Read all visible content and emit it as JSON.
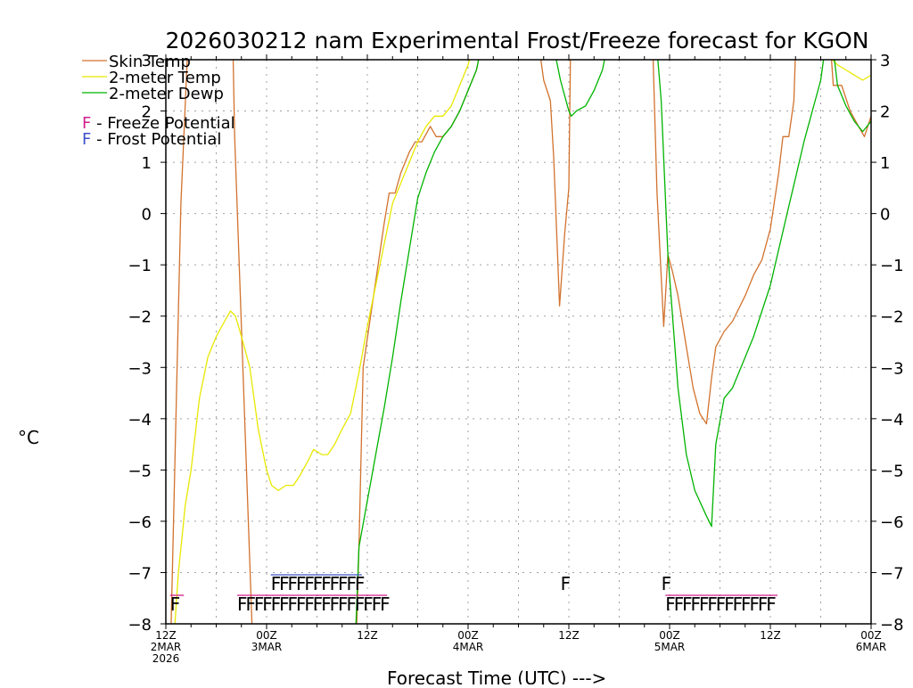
{
  "chart_data": {
    "type": "line",
    "title": "2026030212 nam Experimental Frost/Freeze forecast for KGON",
    "ylabel": "°C",
    "xlabel": "Forecast Time (UTC) --->",
    "ylim": [
      -8,
      3
    ],
    "xlim": [
      0,
      84
    ],
    "yticks": [
      -8,
      -7,
      -6,
      -5,
      -4,
      -3,
      -2,
      -1,
      0,
      1,
      2,
      3
    ],
    "grid": true,
    "x_ticks": [
      {
        "x": 0,
        "hour": "12Z",
        "date": "2MAR",
        "year": "2026"
      },
      {
        "x": 12,
        "hour": "00Z",
        "date": "3MAR",
        "year": ""
      },
      {
        "x": 24,
        "hour": "12Z",
        "date": "",
        "year": ""
      },
      {
        "x": 36,
        "hour": "00Z",
        "date": "4MAR",
        "year": ""
      },
      {
        "x": 48,
        "hour": "12Z",
        "date": "",
        "year": ""
      },
      {
        "x": 60,
        "hour": "00Z",
        "date": "5MAR",
        "year": ""
      },
      {
        "x": 72,
        "hour": "12Z",
        "date": "",
        "year": ""
      },
      {
        "x": 84,
        "hour": "00Z",
        "date": "6MAR",
        "year": ""
      }
    ],
    "series": [
      {
        "name": "Skin Temp",
        "color": "#d2722d",
        "points": [
          [
            0.6,
            -8.2
          ],
          [
            1.8,
            0.2
          ],
          [
            2.6,
            3.2
          ],
          [
            8.0,
            3.2
          ],
          [
            8.2,
            1.5
          ],
          [
            10.3,
            -8.2
          ],
          [
            22.7,
            -8.2
          ],
          [
            23.0,
            -6.5
          ],
          [
            23.5,
            -3.0
          ],
          [
            24.3,
            -2.1
          ],
          [
            25.1,
            -1.2
          ],
          [
            26.0,
            -0.2
          ],
          [
            26.6,
            0.4
          ],
          [
            27.3,
            0.4
          ],
          [
            28.0,
            0.8
          ],
          [
            29.0,
            1.2
          ],
          [
            29.7,
            1.4
          ],
          [
            30.5,
            1.4
          ],
          [
            31.5,
            1.7
          ],
          [
            32.2,
            1.5
          ],
          [
            33.0,
            1.5
          ],
          [
            34.0,
            1.7
          ],
          [
            35.0,
            2.0
          ],
          [
            36.0,
            2.4
          ],
          [
            37.0,
            2.8
          ],
          [
            37.5,
            3.2
          ],
          [
            44.5,
            3.2
          ],
          [
            45.0,
            2.6
          ],
          [
            45.8,
            2.2
          ],
          [
            46.2,
            1.1
          ],
          [
            46.9,
            -1.8
          ],
          [
            47.5,
            -0.4
          ],
          [
            48.0,
            0.5
          ],
          [
            48.2,
            3.2
          ],
          [
            58.0,
            3.2
          ],
          [
            58.5,
            0.4
          ],
          [
            59.3,
            -2.2
          ],
          [
            59.8,
            -0.8
          ],
          [
            60.3,
            -1.1
          ],
          [
            61.0,
            -1.6
          ],
          [
            62.0,
            -2.6
          ],
          [
            62.8,
            -3.4
          ],
          [
            63.6,
            -3.9
          ],
          [
            64.4,
            -4.1
          ],
          [
            65.0,
            -3.2
          ],
          [
            65.5,
            -2.6
          ],
          [
            66.5,
            -2.3
          ],
          [
            67.5,
            -2.1
          ],
          [
            69.0,
            -1.6
          ],
          [
            70.0,
            -1.2
          ],
          [
            71.0,
            -0.9
          ],
          [
            72.0,
            -0.3
          ],
          [
            73.0,
            0.8
          ],
          [
            73.5,
            1.5
          ],
          [
            74.2,
            1.5
          ],
          [
            74.8,
            2.2
          ],
          [
            75.0,
            3.2
          ],
          [
            79.2,
            3.2
          ],
          [
            79.5,
            2.5
          ],
          [
            80.5,
            2.5
          ],
          [
            81.5,
            2.0
          ],
          [
            82.5,
            1.7
          ],
          [
            83.2,
            1.5
          ],
          [
            84.0,
            1.9
          ]
        ]
      },
      {
        "name": "2-meter Temp",
        "color": "#e8e800",
        "points": [
          [
            1.0,
            -8.2
          ],
          [
            1.5,
            -7.0
          ],
          [
            2.3,
            -5.7
          ],
          [
            3.0,
            -5.0
          ],
          [
            4.0,
            -3.6
          ],
          [
            5.0,
            -2.8
          ],
          [
            6.0,
            -2.4
          ],
          [
            7.0,
            -2.1
          ],
          [
            7.7,
            -1.9
          ],
          [
            8.3,
            -2.0
          ],
          [
            9.0,
            -2.4
          ],
          [
            10.0,
            -3.0
          ],
          [
            11.0,
            -4.2
          ],
          [
            12.0,
            -5.0
          ],
          [
            12.6,
            -5.3
          ],
          [
            13.4,
            -5.4
          ],
          [
            14.3,
            -5.3
          ],
          [
            15.2,
            -5.3
          ],
          [
            16.0,
            -5.1
          ],
          [
            17.0,
            -4.8
          ],
          [
            17.6,
            -4.6
          ],
          [
            18.6,
            -4.7
          ],
          [
            19.3,
            -4.7
          ],
          [
            20.1,
            -4.5
          ],
          [
            21.0,
            -4.2
          ],
          [
            22.0,
            -3.9
          ],
          [
            23.0,
            -3.1
          ],
          [
            24.0,
            -2.2
          ],
          [
            25.0,
            -1.4
          ],
          [
            26.0,
            -0.6
          ],
          [
            27.0,
            0.2
          ],
          [
            28.0,
            0.6
          ],
          [
            29.0,
            1.0
          ],
          [
            30.0,
            1.4
          ],
          [
            31.0,
            1.7
          ],
          [
            32.0,
            1.9
          ],
          [
            33.0,
            1.9
          ],
          [
            34.0,
            2.1
          ],
          [
            35.0,
            2.5
          ],
          [
            36.0,
            2.9
          ],
          [
            36.5,
            3.2
          ],
          [
            78.2,
            3.2
          ],
          [
            78.8,
            3.1
          ],
          [
            80.0,
            2.9
          ],
          [
            81.0,
            2.8
          ],
          [
            82.0,
            2.7
          ],
          [
            83.0,
            2.6
          ],
          [
            84.0,
            2.7
          ]
        ]
      },
      {
        "name": "2-meter Dewp",
        "color": "#00b400",
        "points": [
          [
            22.6,
            -8.2
          ],
          [
            23.0,
            -6.5
          ],
          [
            24.0,
            -5.6
          ],
          [
            25.0,
            -4.7
          ],
          [
            26.0,
            -3.8
          ],
          [
            27.0,
            -2.8
          ],
          [
            28.0,
            -1.7
          ],
          [
            29.0,
            -0.7
          ],
          [
            30.0,
            0.3
          ],
          [
            31.0,
            0.8
          ],
          [
            32.0,
            1.2
          ],
          [
            33.0,
            1.5
          ],
          [
            34.0,
            1.7
          ],
          [
            35.0,
            2.0
          ],
          [
            36.0,
            2.4
          ],
          [
            37.0,
            2.8
          ],
          [
            37.5,
            3.2
          ],
          [
            46.3,
            3.2
          ],
          [
            46.5,
            3.0
          ],
          [
            47.0,
            2.6
          ],
          [
            47.5,
            2.3
          ],
          [
            48.0,
            2.0
          ],
          [
            48.3,
            1.9
          ],
          [
            48.9,
            2.0
          ],
          [
            50.0,
            2.1
          ],
          [
            51.0,
            2.4
          ],
          [
            52.0,
            2.8
          ],
          [
            52.5,
            3.2
          ],
          [
            58.5,
            3.2
          ],
          [
            59.0,
            2.2
          ],
          [
            59.8,
            -0.8
          ],
          [
            61.0,
            -3.4
          ],
          [
            62.0,
            -4.7
          ],
          [
            63.0,
            -5.4
          ],
          [
            64.4,
            -5.9
          ],
          [
            65.0,
            -6.1
          ],
          [
            65.5,
            -4.5
          ],
          [
            66.5,
            -3.6
          ],
          [
            67.5,
            -3.4
          ],
          [
            69.0,
            -2.8
          ],
          [
            70.0,
            -2.4
          ],
          [
            71.0,
            -1.9
          ],
          [
            72.0,
            -1.4
          ],
          [
            73.0,
            -0.7
          ],
          [
            74.0,
            0.0
          ],
          [
            75.0,
            0.7
          ],
          [
            76.0,
            1.4
          ],
          [
            77.0,
            2.0
          ],
          [
            78.0,
            2.6
          ],
          [
            78.5,
            3.2
          ],
          [
            79.5,
            3.2
          ],
          [
            80.0,
            2.5
          ],
          [
            81.0,
            2.1
          ],
          [
            82.0,
            1.8
          ],
          [
            83.0,
            1.6
          ],
          [
            84.0,
            1.8
          ]
        ]
      }
    ],
    "freeze_marks": [
      [
        0.5,
        1.3
      ],
      [
        8.5,
        25.5
      ],
      [
        59.5,
        72.0
      ]
    ],
    "frost_marks": [
      [
        12.5,
        22.5
      ],
      [
        47.0,
        47.0
      ],
      [
        59.0,
        59.0
      ]
    ],
    "freeze_y": -7.6,
    "frost_y": -7.2,
    "freeze_color": "#d21e8c",
    "frost_color": "#3c50c8",
    "legend": {
      "series_labels": [
        "Skin Temp",
        "2-meter Temp",
        "2-meter Dewp"
      ],
      "freeze_letter": "F",
      "freeze_label": " - Freeze Potential",
      "frost_letter": "F",
      "frost_label": " - Frost Potential"
    }
  }
}
